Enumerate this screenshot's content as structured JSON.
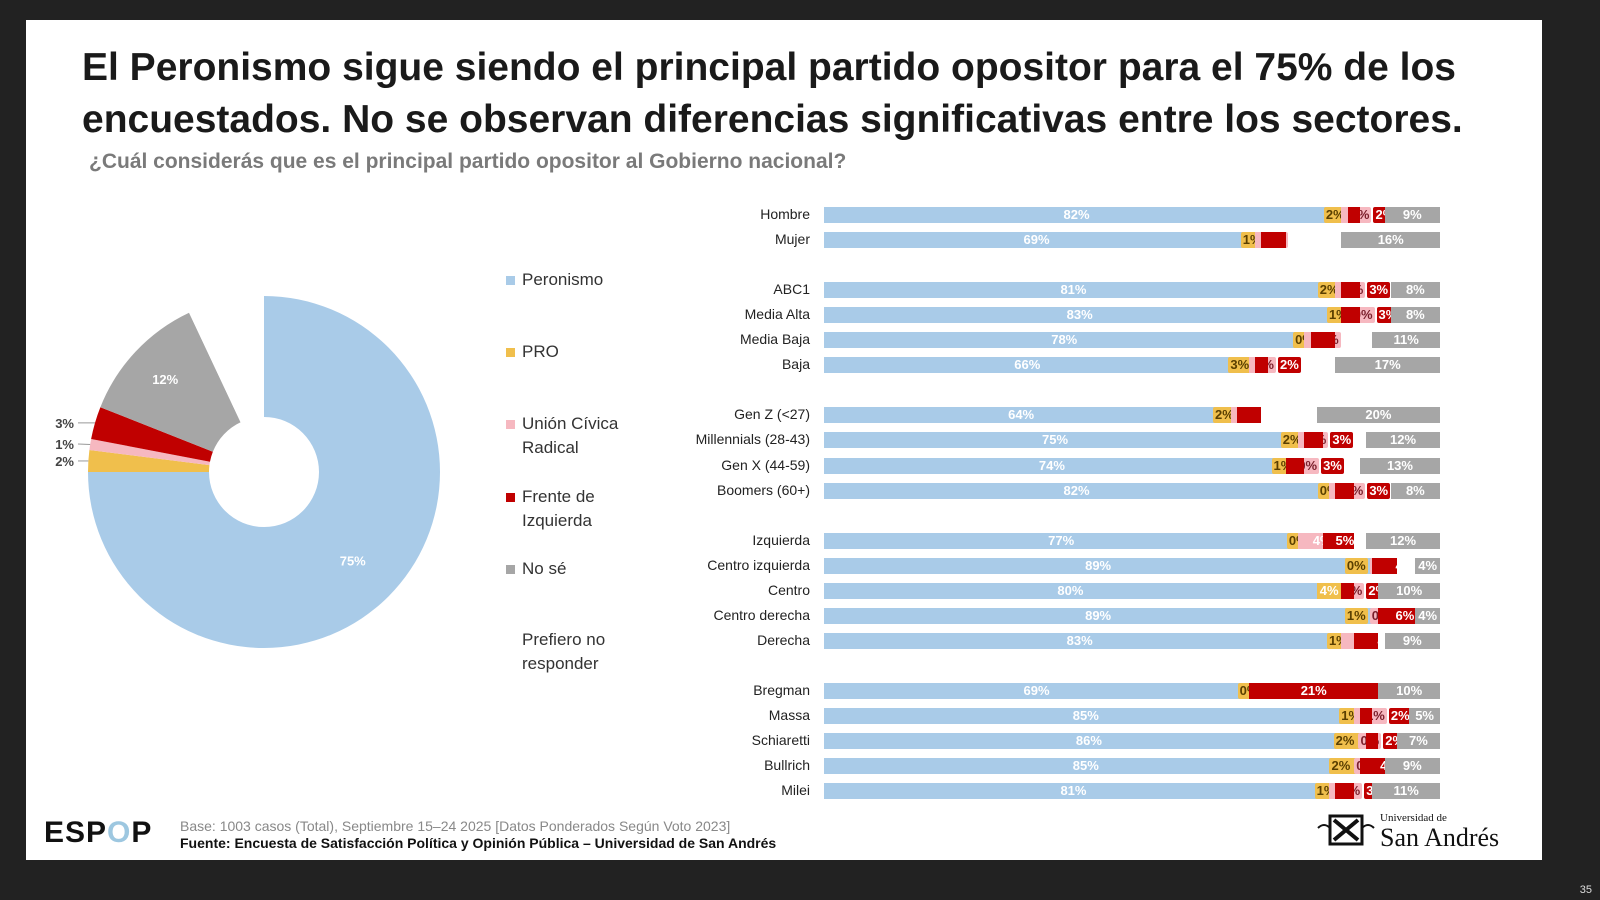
{
  "title": "El Peronismo sigue siendo el principal partido opositor para el 75% de los encuestados. No se observan diferencias significativas entre los sectores.",
  "title_line1": "El Peronismo sigue siendo el principal partido opositor para el 75% de los",
  "title_line2": "encuestados. No se observan diferencias significativas entre los sectores.",
  "subtitle": "¿Cuál considerás que es el principal partido opositor al Gobierno nacional?",
  "footer": {
    "base": "Base: 1003 casos (Total), Septiembre 15–24 2025 [Datos Ponderados Según Voto 2023]",
    "source": "Fuente: Encuesta de Satisfacción Política y Opinión Pública – Universidad de San Andrés",
    "logo_left": "ESPOP",
    "logo_right_small": "Universidad de",
    "logo_right_big": "San Andrés",
    "page": "35"
  },
  "colors": {
    "Peronismo": "#a9cbe8",
    "PRO": "#f0bf4c",
    "UCR": "#f6b8c0",
    "FIT": "#c00000",
    "NoSe": "#a6a6a6",
    "NR": "#ffffff"
  },
  "chart_data": [
    {
      "type": "pie",
      "donut": true,
      "slices": [
        {
          "name": "Peronismo",
          "value": 75,
          "label": "75%"
        },
        {
          "name": "PRO",
          "value": 2,
          "label": "2%"
        },
        {
          "name": "Unión Cívica Radical",
          "value": 1,
          "label": "1%"
        },
        {
          "name": "Frente de Izquierda",
          "value": 3,
          "label": "3%"
        },
        {
          "name": "No sé",
          "value": 12,
          "label": "12%"
        },
        {
          "name": "Prefiero no responder",
          "value": 7,
          "label": ""
        }
      ],
      "legend": [
        "Peronismo",
        "PRO",
        "Unión Cívica Radical",
        "Frente de Izquierda",
        "No sé",
        "Prefiero no responder"
      ],
      "legend_placement": "right"
    },
    {
      "type": "bar",
      "orientation": "horizontal",
      "stacked": "100%",
      "series_order": [
        "Peronismo",
        "PRO",
        "Unión Cívica Radical",
        "Frente de Izquierda",
        "Prefiero no responder",
        "No sé"
      ],
      "groups": [
        [
          {
            "label": "Hombre",
            "values": [
              82,
              2,
              1,
              2,
              4,
              9
            ]
          },
          {
            "label": "Mujer",
            "values": [
              69,
              1,
              1,
              4,
              9,
              16
            ]
          }
        ],
        [
          {
            "label": "ABC1",
            "values": [
              81,
              2,
              1,
              3,
              5,
              8
            ]
          },
          {
            "label": "Media Alta",
            "values": [
              83,
              1,
              0,
              3,
              5,
              8
            ]
          },
          {
            "label": "Media Baja",
            "values": [
              78,
              0,
              1,
              4,
              6,
              11
            ]
          },
          {
            "label": "Baja",
            "values": [
              66,
              3,
              1,
              2,
              11,
              17
            ]
          }
        ],
        [
          {
            "label": "Gen Z (<27)",
            "values": [
              64,
              2,
              1,
              4,
              9,
              20
            ]
          },
          {
            "label": "Millennials (28-43)",
            "values": [
              75,
              2,
              1,
              3,
              7,
              12
            ]
          },
          {
            "label": "Gen X (44-59)",
            "values": [
              74,
              1,
              0,
              3,
              9,
              13
            ]
          },
          {
            "label": "Boomers (60+)",
            "values": [
              82,
              0,
              1,
              3,
              6,
              8
            ]
          }
        ],
        [
          {
            "label": "Izquierda",
            "values": [
              77,
              0,
              4,
              5,
              2,
              12
            ]
          },
          {
            "label": "Centro izquierda",
            "values": [
              89,
              0,
              0,
              4,
              3,
              4
            ]
          },
          {
            "label": "Centro",
            "values": [
              80,
              4,
              0,
              2,
              4,
              10
            ]
          },
          {
            "label": "Centro derecha",
            "values": [
              89,
              1,
              0,
              6,
              0,
              4
            ]
          },
          {
            "label": "Derecha",
            "values": [
              83,
              1,
              2,
              4,
              1,
              9
            ]
          }
        ],
        [
          {
            "label": "Bregman",
            "values": [
              69,
              0,
              0,
              21,
              0,
              10
            ]
          },
          {
            "label": "Massa",
            "values": [
              85,
              1,
              1,
              2,
              6,
              5
            ]
          },
          {
            "label": "Schiaretti",
            "values": [
              86,
              2,
              0,
              2,
              3,
              7
            ]
          },
          {
            "label": "Bullrich",
            "values": [
              85,
              2,
              0,
              4,
              0,
              9
            ]
          },
          {
            "label": "Milei",
            "values": [
              81,
              1,
              1,
              3,
              3,
              11
            ]
          }
        ]
      ]
    }
  ]
}
